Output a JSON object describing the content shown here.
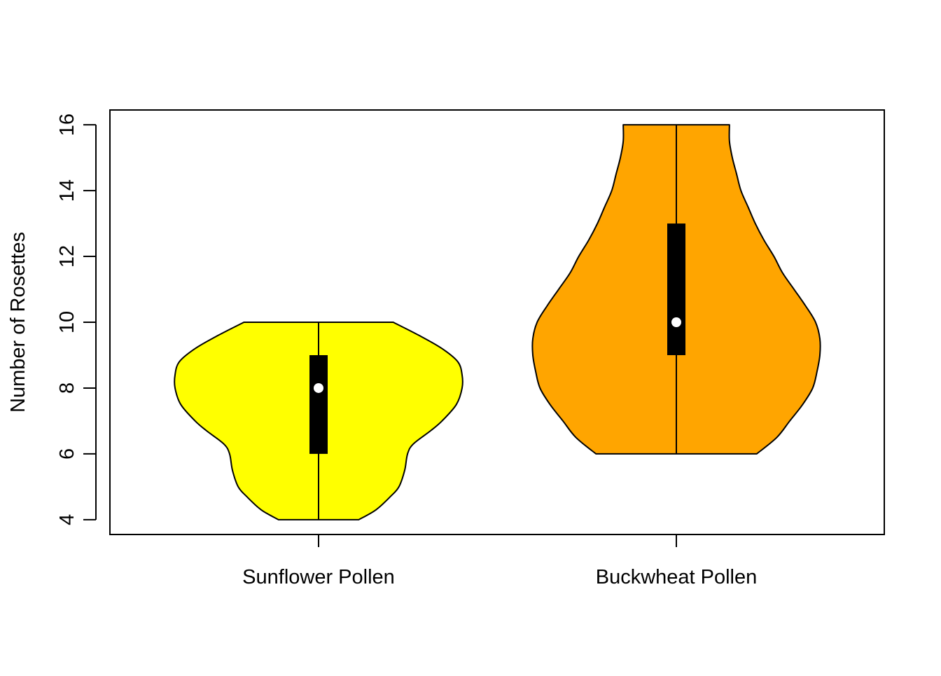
{
  "chart_data": {
    "type": "violin",
    "title": "",
    "xlabel": "",
    "ylabel": "Number of Rosettes",
    "ylim": [
      3.55,
      16.45
    ],
    "yticks": [
      4,
      6,
      8,
      10,
      12,
      14,
      16
    ],
    "grid": false,
    "legend": "none",
    "categories": [
      "Sunflower Pollen",
      "Buckwheat Pollen"
    ],
    "groups": [
      {
        "name": "Sunflower Pollen",
        "color": "#FFFF00",
        "min": 4,
        "q1": 6,
        "median": 8,
        "q3": 9,
        "max": 10,
        "density_profile": [
          [
            4.0,
            0.28
          ],
          [
            4.3,
            0.4
          ],
          [
            4.7,
            0.5
          ],
          [
            5.0,
            0.56
          ],
          [
            5.5,
            0.6
          ],
          [
            6.0,
            0.62
          ],
          [
            6.3,
            0.66
          ],
          [
            6.7,
            0.78
          ],
          [
            7.0,
            0.86
          ],
          [
            7.5,
            0.96
          ],
          [
            8.0,
            1.0
          ],
          [
            8.4,
            1.0
          ],
          [
            8.8,
            0.97
          ],
          [
            9.2,
            0.86
          ],
          [
            9.6,
            0.7
          ],
          [
            10.0,
            0.52
          ]
        ]
      },
      {
        "name": "Buckwheat Pollen",
        "color": "#FFA500",
        "min": 6,
        "q1": 9,
        "median": 10,
        "q3": 13,
        "max": 16,
        "density_profile": [
          [
            6.0,
            0.56
          ],
          [
            6.5,
            0.7
          ],
          [
            7.0,
            0.79
          ],
          [
            7.5,
            0.88
          ],
          [
            8.0,
            0.95
          ],
          [
            8.5,
            0.98
          ],
          [
            9.0,
            1.0
          ],
          [
            9.5,
            1.0
          ],
          [
            10.0,
            0.97
          ],
          [
            10.5,
            0.9
          ],
          [
            11.0,
            0.82
          ],
          [
            11.5,
            0.74
          ],
          [
            12.0,
            0.68
          ],
          [
            12.5,
            0.61
          ],
          [
            13.0,
            0.55
          ],
          [
            13.5,
            0.5
          ],
          [
            14.0,
            0.45
          ],
          [
            14.5,
            0.42
          ],
          [
            15.0,
            0.39
          ],
          [
            15.5,
            0.37
          ],
          [
            16.0,
            0.37
          ]
        ]
      }
    ]
  }
}
